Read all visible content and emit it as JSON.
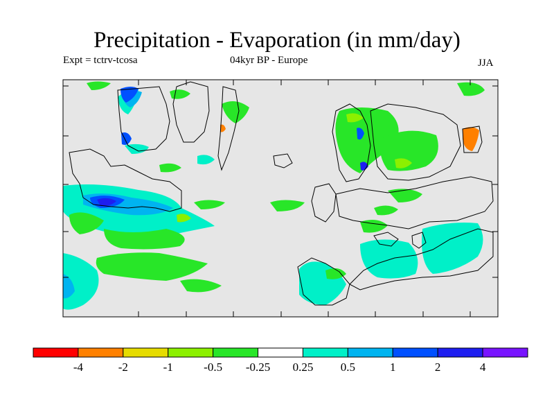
{
  "title": "Precipitation - Evaporation (in mm/day)",
  "subtitle_left": "Expt = tctrv-tcosa",
  "subtitle_center": "04kyr BP - Europe",
  "subtitle_right": "JJA",
  "colors": {
    "map_background": "#e6e6e6",
    "coastline": "#000000"
  },
  "legend": {
    "colors": [
      "#ff0000",
      "#ff8000",
      "#e6dc00",
      "#8cf000",
      "#28e628",
      "#ffffff",
      "#00f0c8",
      "#00b4f0",
      "#0050ff",
      "#1e1ef0",
      "#7814ff"
    ],
    "labels": [
      "-4",
      "-2",
      "-1",
      "-0.5",
      "-0.25",
      "0.25",
      "0.5",
      "1",
      "2",
      "4"
    ]
  }
}
